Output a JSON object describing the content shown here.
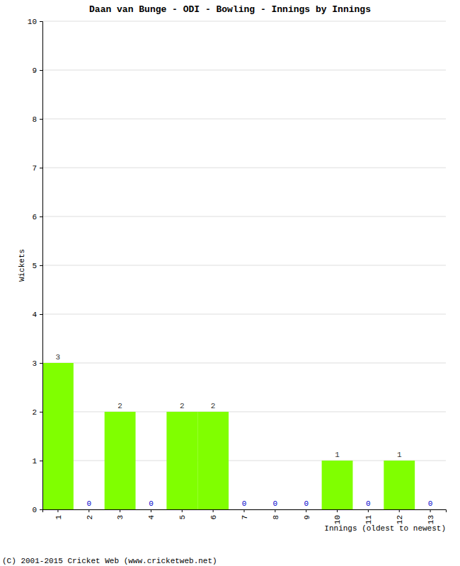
{
  "chart_data": {
    "type": "bar",
    "title": "Daan van Bunge - ODI - Bowling - Innings by Innings",
    "x_label": "Innings (oldest to newest)",
    "y_label": "Wickets",
    "footer": "(C) 2001-2015 Cricket Web (www.cricketweb.net)",
    "categories": [
      "1",
      "2",
      "3",
      "4",
      "5",
      "6",
      "7",
      "8",
      "9",
      "10",
      "11",
      "12",
      "13"
    ],
    "values": [
      3,
      0,
      2,
      0,
      2,
      2,
      0,
      0,
      0,
      1,
      0,
      1,
      0
    ],
    "color": "#80ff00",
    "ylim": [
      0,
      10
    ],
    "yticks": [
      0,
      1,
      2,
      3,
      4,
      5,
      6,
      7,
      8,
      9,
      10
    ],
    "grid": true,
    "data_labels": true
  }
}
